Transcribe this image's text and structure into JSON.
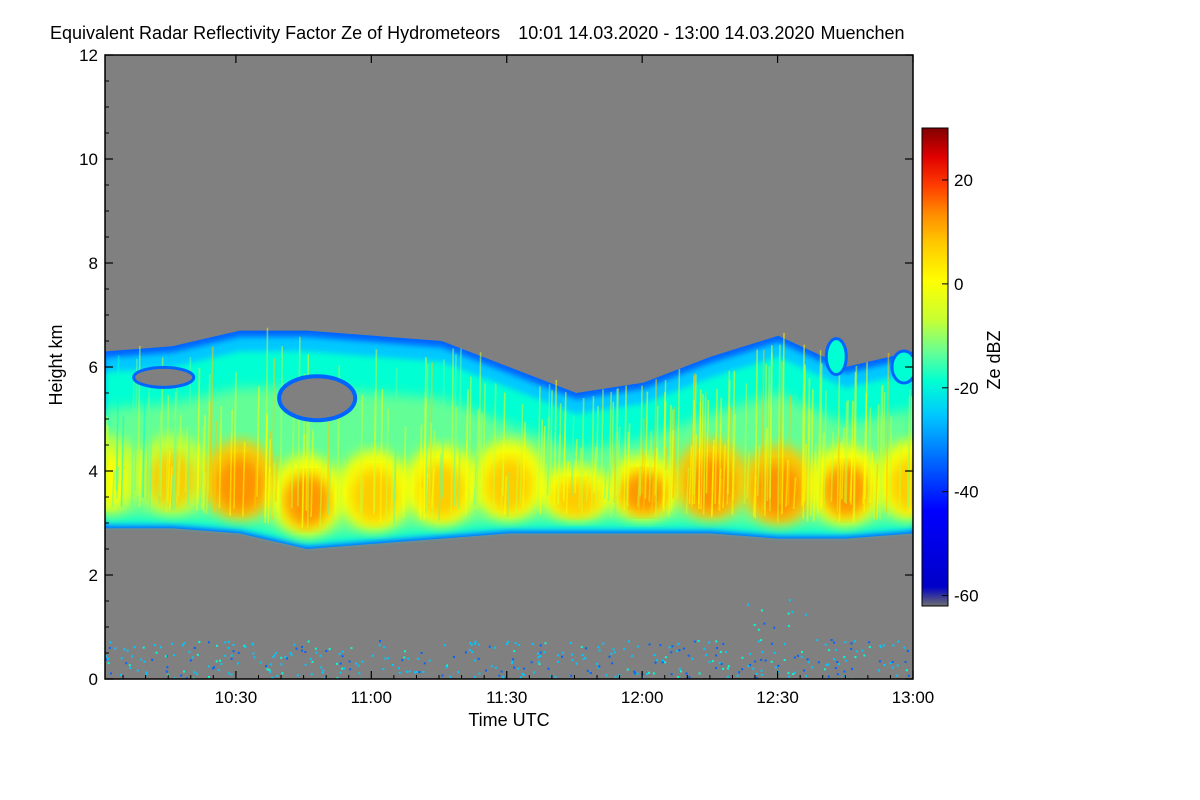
{
  "chart_data": {
    "type": "heatmap",
    "title": "Equivalent Radar Reflectivity Factor Ze of Hydrometeors",
    "period": "10:01 14.03.2020 - 13:00 14.03.2020",
    "location": "Muenchen",
    "xlabel": "Time UTC",
    "ylabel": "Height km",
    "colorbar_label": "Ze dBZ",
    "x_range": [
      "10:01",
      "13:00"
    ],
    "x_ticks": [
      "10:30",
      "11:00",
      "11:30",
      "12:00",
      "12:30",
      "13:00"
    ],
    "ylim": [
      0,
      12
    ],
    "y_ticks": [
      "0",
      "2",
      "4",
      "6",
      "8",
      "10",
      "12"
    ],
    "clim": [
      -62,
      30
    ],
    "colorbar_ticks": [
      "-60",
      "-40",
      "-20",
      "0",
      "20"
    ],
    "colormap": [
      "#6e6e6e",
      "#0000c8",
      "#0000ff",
      "#0064ff",
      "#00c8ff",
      "#00ffd2",
      "#64ff96",
      "#c8ff32",
      "#ffff00",
      "#ffc800",
      "#ff8c00",
      "#ff3c00",
      "#e00000",
      "#800000"
    ],
    "background_color": "#808080",
    "cloud_layer": {
      "top_km": [
        6.3,
        6.4,
        6.7,
        6.7,
        6.6,
        6.5,
        6.0,
        5.5,
        5.7,
        6.2,
        6.6,
        6.0,
        6.3
      ],
      "base_km": [
        2.9,
        2.9,
        2.8,
        2.5,
        2.6,
        2.7,
        2.8,
        2.8,
        2.8,
        2.8,
        2.7,
        2.7,
        2.8
      ],
      "core_dbz": [
        -5,
        0,
        10,
        8,
        2,
        5,
        4,
        3,
        8,
        12,
        10,
        8,
        3
      ]
    },
    "notes": "Rain/cloud layer between about 2.5 and 6.5 km height; strongest reflectivity (up to about 10 dBZ) near 3–4 km; scattered weak echoes below 1 km."
  }
}
